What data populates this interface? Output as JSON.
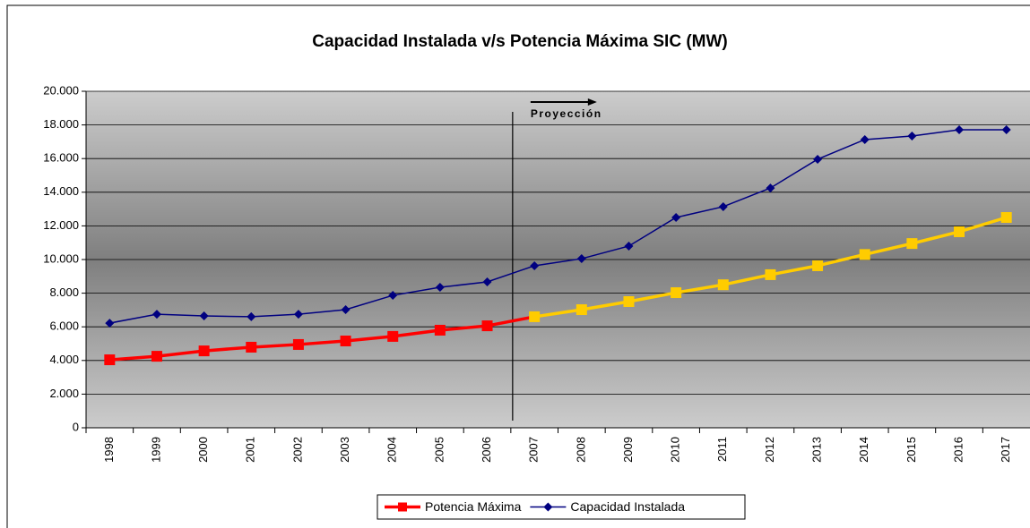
{
  "chart_data": {
    "type": "line",
    "title": "Capacidad Instalada v/s Potencia Máxima SIC (MW)",
    "categories": [
      "1998",
      "1999",
      "2000",
      "2001",
      "2002",
      "2003",
      "2004",
      "2005",
      "2006",
      "2007",
      "2008",
      "2009",
      "2010",
      "2011",
      "2012",
      "2013",
      "2014",
      "2015",
      "2016",
      "2017"
    ],
    "series": [
      {
        "name": "Potencia Máxima",
        "color": "#ff0000",
        "projection_color": "#ffcc00",
        "marker": "square",
        "values": [
          4040,
          4250,
          4570,
          4790,
          4950,
          5160,
          5430,
          5800,
          6060,
          6600,
          7020,
          7500,
          8030,
          8500,
          9100,
          9630,
          10300,
          10950,
          11650,
          12500
        ]
      },
      {
        "name": "Capacidad Instalada",
        "color": "#000080",
        "marker": "diamond",
        "values": [
          6220,
          6750,
          6650,
          6600,
          6750,
          7020,
          7870,
          8350,
          8670,
          9630,
          10050,
          10800,
          12500,
          13140,
          14250,
          15960,
          17130,
          17340,
          17710,
          17710
        ]
      }
    ],
    "annotation": {
      "text": "Proyección",
      "x": "2007"
    },
    "ylim": [
      0,
      20000
    ],
    "yticks": [
      0,
      {
        "value": 2000,
        "label": "2.000"
      },
      {
        "value": 4000,
        "label": "4.000"
      },
      {
        "value": 6000,
        "label": "6.000"
      },
      {
        "value": 8000,
        "label": "8.000"
      },
      {
        "value": 10000,
        "label": "10.000"
      },
      {
        "value": 12000,
        "label": "12.000"
      },
      {
        "value": 14000,
        "label": "14.000"
      },
      {
        "value": 16000,
        "label": "16.000"
      },
      {
        "value": 18000,
        "label": "18.000"
      },
      {
        "value": 20000,
        "label": "20.000"
      }
    ],
    "grid": true,
    "legend": "bottom"
  }
}
